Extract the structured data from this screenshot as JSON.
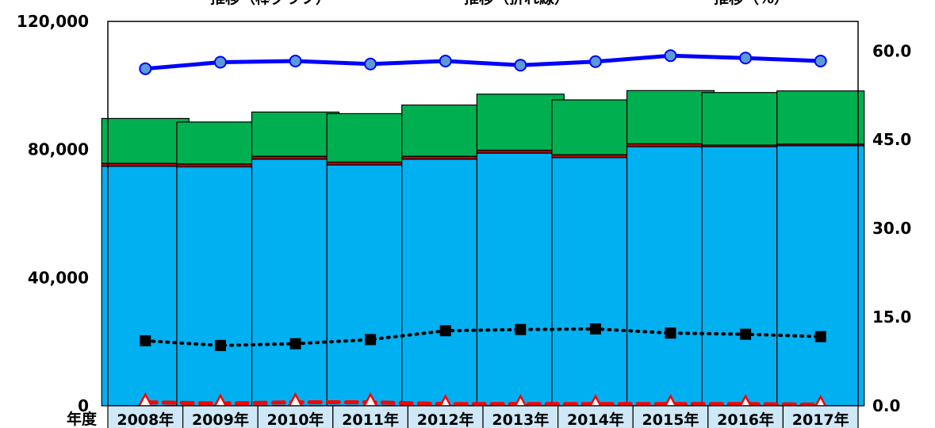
{
  "legend_fragments": [
    "推移（棒グラフ）",
    "推移（折れ線）",
    "推移（%）"
  ],
  "chart_data": {
    "type": "bar",
    "stacked": true,
    "x_header": "年度",
    "categories": [
      "2008年",
      "2009年",
      "2010年",
      "2011年",
      "2012年",
      "2013年",
      "2014年",
      "2015年",
      "2016年",
      "2017年"
    ],
    "y_left": {
      "range": [
        0,
        120000
      ],
      "ticks": [
        "0",
        "40,000",
        "80,000",
        "120,000"
      ]
    },
    "y_right": {
      "range": [
        0,
        65
      ],
      "ticks": [
        "0.0",
        "15.0",
        "30.0",
        "45.0",
        "60.0"
      ]
    },
    "grid": false,
    "bar_series": [
      {
        "color": "#00b0f0",
        "values": [
          74800,
          74600,
          77000,
          75200,
          77000,
          78900,
          77500,
          80900,
          80900,
          81200
        ]
      },
      {
        "color": "#c00000",
        "values": [
          900,
          900,
          900,
          900,
          900,
          900,
          900,
          900,
          500,
          500
        ]
      },
      {
        "color": "#00b050",
        "values": [
          14000,
          13100,
          13800,
          15100,
          16000,
          17500,
          17100,
          16600,
          16400,
          16600
        ]
      }
    ],
    "line_series": [
      {
        "axis": "right",
        "color": "#0000ff",
        "style": "solid",
        "marker": "circle",
        "values": [
          57.0,
          58.1,
          58.3,
          57.8,
          58.3,
          57.6,
          58.2,
          59.2,
          58.8,
          58.3
        ]
      },
      {
        "axis": "right",
        "color": "#000000",
        "style": "dotted",
        "marker": "square",
        "values": [
          11.0,
          10.2,
          10.5,
          11.2,
          12.7,
          12.9,
          13.0,
          12.3,
          12.1,
          11.7
        ]
      },
      {
        "axis": "right",
        "color": "#ff0000",
        "style": "dashed",
        "marker": "triangle",
        "values": [
          0.6,
          0.4,
          0.6,
          0.6,
          0.3,
          0.3,
          0.3,
          0.3,
          0.3,
          0.2
        ]
      }
    ]
  }
}
